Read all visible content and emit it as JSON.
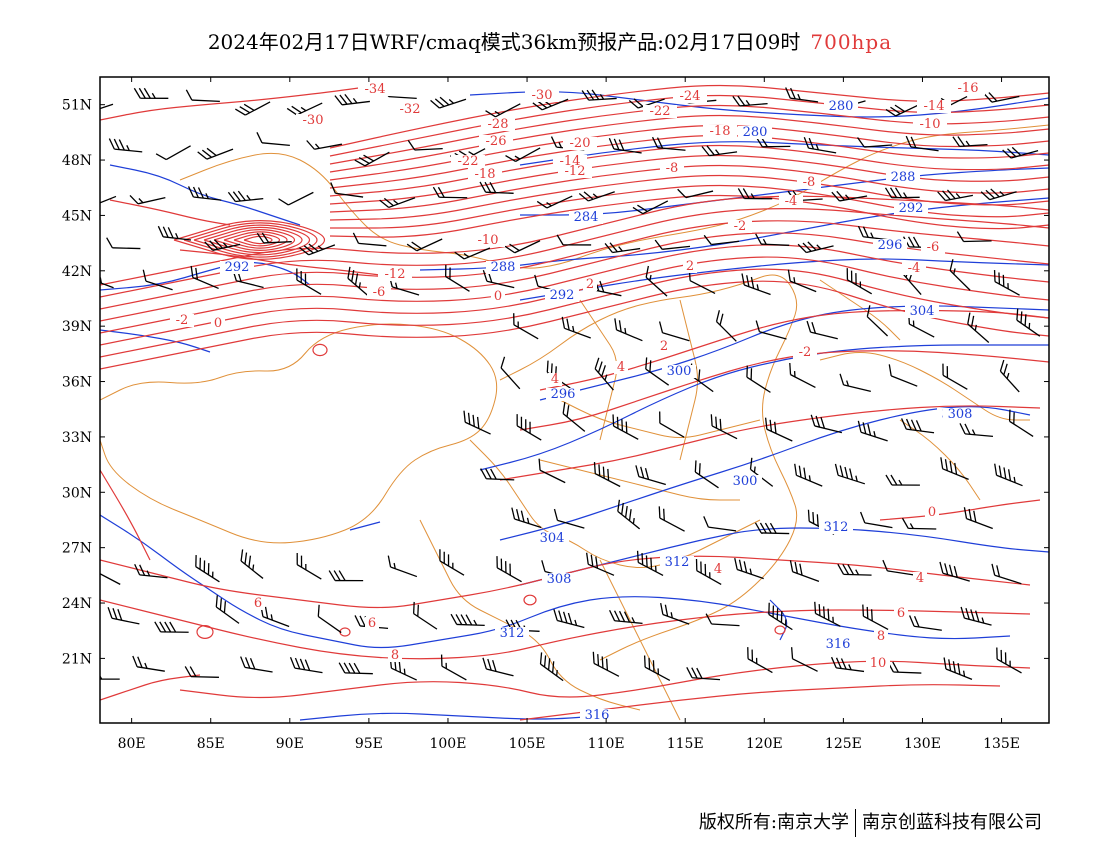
{
  "title": {
    "main": "2024年02月17日WRF/cmaq模式36km预报产品:02月17日09时",
    "level": "700hpa",
    "level_color": "#e03a3a"
  },
  "map": {
    "lat_labels": [
      "51N",
      "48N",
      "45N",
      "42N",
      "39N",
      "36N",
      "33N",
      "30N",
      "27N",
      "24N",
      "21N"
    ],
    "lon_labels": [
      "80E",
      "85E",
      "90E",
      "95E",
      "100E",
      "105E",
      "110E",
      "115E",
      "120E",
      "125E",
      "130E",
      "135E"
    ],
    "lon_range": [
      78,
      138
    ],
    "lat_range": [
      17.5,
      52.5
    ],
    "colors": {
      "temperature": "#e03a3a",
      "height": "#1f3fd8",
      "border": "#e0913a",
      "wind": "#000000"
    },
    "temperature_labels": [
      "-34",
      "-32",
      "-30",
      "-30",
      "-28",
      "-26",
      "-24",
      "-22",
      "-22",
      "-20",
      "-18",
      "-18",
      "-16",
      "-14",
      "-14",
      "-12",
      "-12",
      "-10",
      "-10",
      "-8",
      "-8",
      "-6",
      "-6",
      "-4",
      "-4",
      "-2",
      "-2",
      "-2",
      "0",
      "0",
      "0",
      "2",
      "2",
      "2",
      "4",
      "4",
      "4",
      "4",
      "6",
      "6",
      "6",
      "8",
      "8",
      "10"
    ],
    "height_labels": [
      "280",
      "280",
      "284",
      "288",
      "288",
      "292",
      "292",
      "292",
      "296",
      "296",
      "300",
      "300",
      "300",
      "304",
      "304",
      "308",
      "308",
      "312",
      "312",
      "312",
      "316",
      "316"
    ]
  },
  "footer": {
    "left": "版权所有:南京大学",
    "right": "南京创蓝科技有限公司"
  }
}
